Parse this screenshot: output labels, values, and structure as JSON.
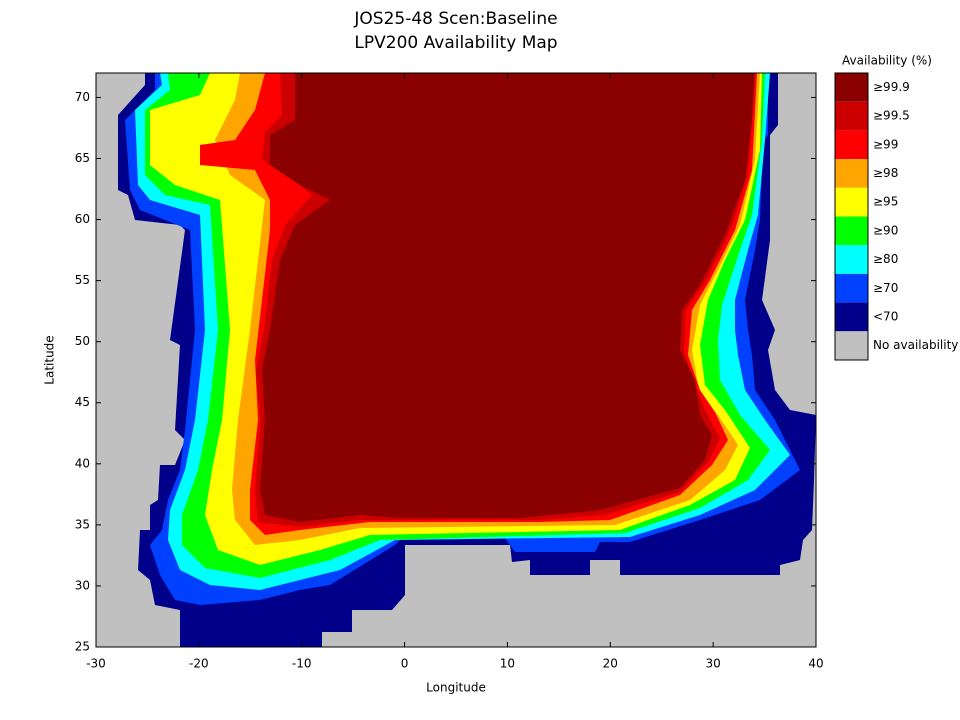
{
  "chart_data": {
    "type": "map",
    "title": "JOS25-48 Scen:Baseline",
    "subtitle": "LPV200 Availability Map",
    "x_label": "Longitude",
    "y_label": "Latitude",
    "xlim": [
      -30,
      40
    ],
    "ylim": [
      25,
      72
    ],
    "xticks": [
      -30,
      -20,
      -10,
      0,
      10,
      20,
      30,
      40
    ],
    "yticks": [
      25,
      30,
      35,
      40,
      45,
      50,
      55,
      60,
      65,
      70
    ],
    "legend": {
      "title": "Availability (%)",
      "entries": [
        {
          "label": "≥99.9",
          "color": "#8b0000"
        },
        {
          "label": "≥99.5",
          "color": "#cc0000"
        },
        {
          "label": "≥99",
          "color": "#ff0000"
        },
        {
          "label": "≥98",
          "color": "#ffa500"
        },
        {
          "label": "≥95",
          "color": "#ffff00"
        },
        {
          "label": "≥90",
          "color": "#00ff00"
        },
        {
          "label": "≥80",
          "color": "#00ffff"
        },
        {
          "label": "≥70",
          "color": "#0040ff"
        },
        {
          "label": "<70",
          "color": "#00008b"
        },
        {
          "label": "No availability",
          "color": "#c0c0c0"
        }
      ]
    }
  }
}
